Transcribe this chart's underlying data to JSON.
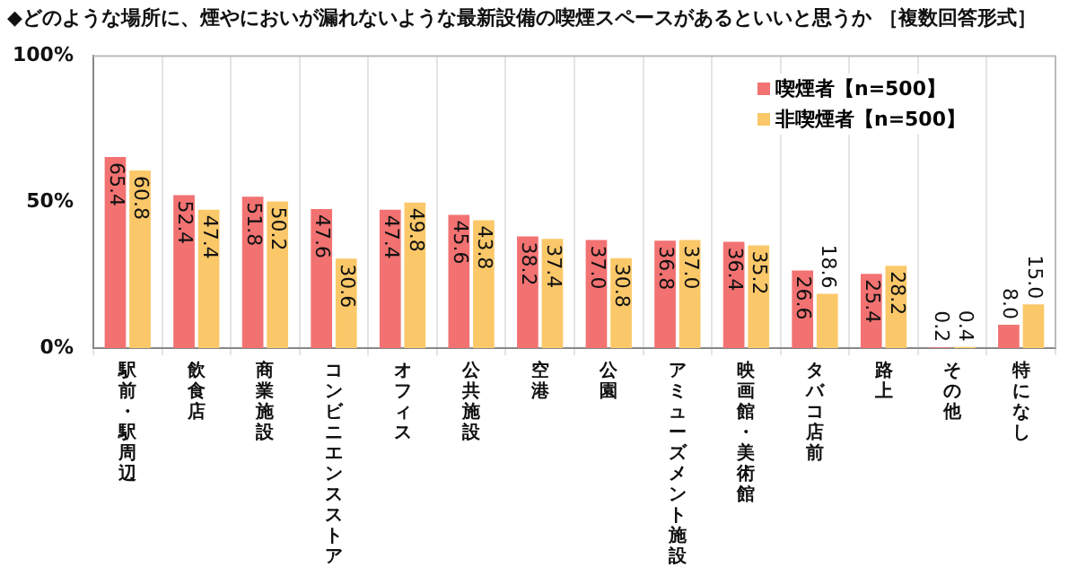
{
  "chart_data": {
    "type": "bar",
    "title": "◆どのような場所に、煙やにおいが漏れないような最新設備の喫煙スペースがあるといいと思うか ［複数回答形式］",
    "categories": [
      "駅前・駅周辺",
      "飲食店",
      "商業施設",
      "コンビニエンスストア",
      "オフィス",
      "公共施設",
      "空港",
      "公園",
      "アミューズメント施設",
      "映画館・美術館",
      "タバコ店前",
      "路上",
      "その他",
      "特になし"
    ],
    "series": [
      {
        "name": "喫煙者【n=500】",
        "color": "#f27272",
        "values": [
          65.4,
          52.4,
          51.8,
          47.6,
          47.4,
          45.6,
          38.2,
          37.0,
          36.8,
          36.4,
          26.6,
          25.4,
          0.2,
          8.0
        ],
        "value_labels": [
          "65.4",
          "52.4",
          "51.8",
          "47.6",
          "47.4",
          "45.6",
          "38.2",
          "37.0",
          "36.8",
          "36.4",
          "26.6",
          "25.4",
          "0.2",
          "8.0"
        ]
      },
      {
        "name": "非喫煙者【n=500】",
        "color": "#fbc869",
        "values": [
          60.8,
          47.4,
          50.2,
          30.6,
          49.8,
          43.8,
          37.4,
          30.8,
          37.0,
          35.2,
          18.6,
          28.2,
          0.4,
          15.0
        ],
        "value_labels": [
          "60.8",
          "47.4",
          "50.2",
          "30.6",
          "49.8",
          "43.8",
          "37.4",
          "30.8",
          "37.0",
          "35.2",
          "18.6",
          "28.2",
          "0.4",
          "15.0"
        ]
      }
    ],
    "ylim": [
      0,
      100
    ],
    "yticks": [
      {
        "value": 0,
        "label": "0%"
      },
      {
        "value": 50,
        "label": "50%"
      },
      {
        "value": 100,
        "label": "100%"
      }
    ],
    "grid": "x",
    "legend": "top right"
  }
}
